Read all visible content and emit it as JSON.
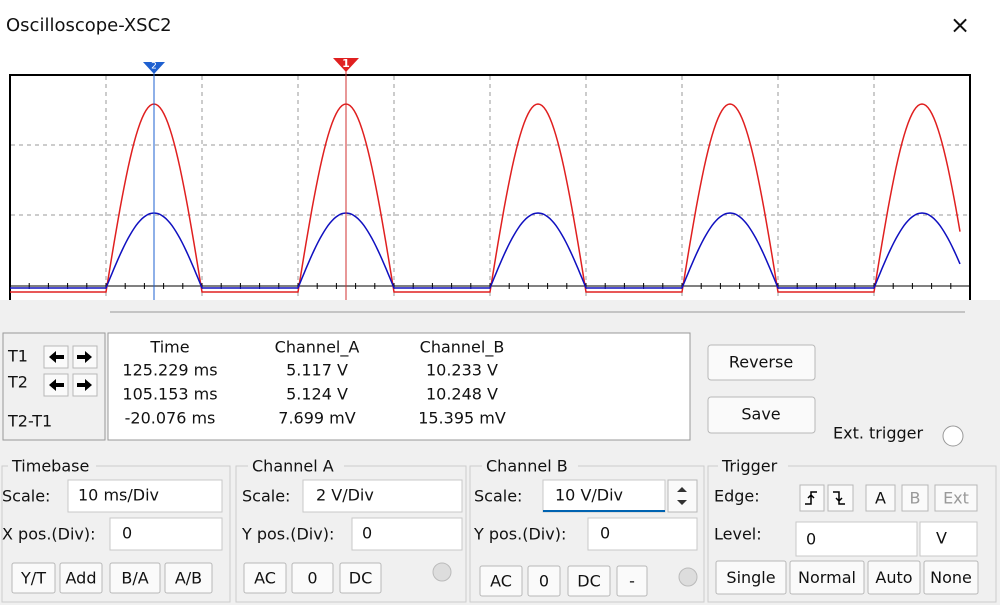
{
  "window": {
    "title": "Oscilloscope-XSC2",
    "close": "×"
  },
  "cursors": {
    "marker_1": "1",
    "marker_2": "2"
  },
  "readout": {
    "row_labels": [
      "T1",
      "T2",
      "T2-T1"
    ],
    "headers": [
      "Time",
      "Channel_A",
      "Channel_B"
    ],
    "rows": [
      [
        "125.229 ms",
        "5.117 V",
        "10.233 V"
      ],
      [
        "105.153 ms",
        "5.124 V",
        "10.248 V"
      ],
      [
        "-20.076 ms",
        "7.699 mV",
        "15.395 mV"
      ]
    ]
  },
  "buttons": {
    "reverse": "Reverse",
    "save": "Save"
  },
  "ext_trigger": "Ext. trigger",
  "timebase": {
    "title": "Timebase",
    "scale_label": "Scale:",
    "scale": "10 ms/Div",
    "xpos_label": "X pos.(Div):",
    "xpos": "0",
    "modes": [
      "Y/T",
      "Add",
      "B/A",
      "A/B"
    ]
  },
  "channel_a": {
    "title": "Channel A",
    "scale_label": "Scale:",
    "scale": "2 V/Div",
    "ypos_label": "Y pos.(Div):",
    "ypos": "0",
    "coupling": [
      "AC",
      "0",
      "DC"
    ]
  },
  "channel_b": {
    "title": "Channel B",
    "scale_label": "Scale:",
    "scale": "10 V/Div",
    "ypos_label": "Y pos.(Div):",
    "ypos": "0",
    "coupling": [
      "AC",
      "0",
      "DC",
      "-"
    ]
  },
  "trigger": {
    "title": "Trigger",
    "edge_label": "Edge:",
    "edges": [
      "A",
      "B",
      "Ext"
    ],
    "level_label": "Level:",
    "level": "0",
    "level_unit": "V",
    "modes": [
      "Single",
      "Normal",
      "Auto",
      "None"
    ]
  }
}
